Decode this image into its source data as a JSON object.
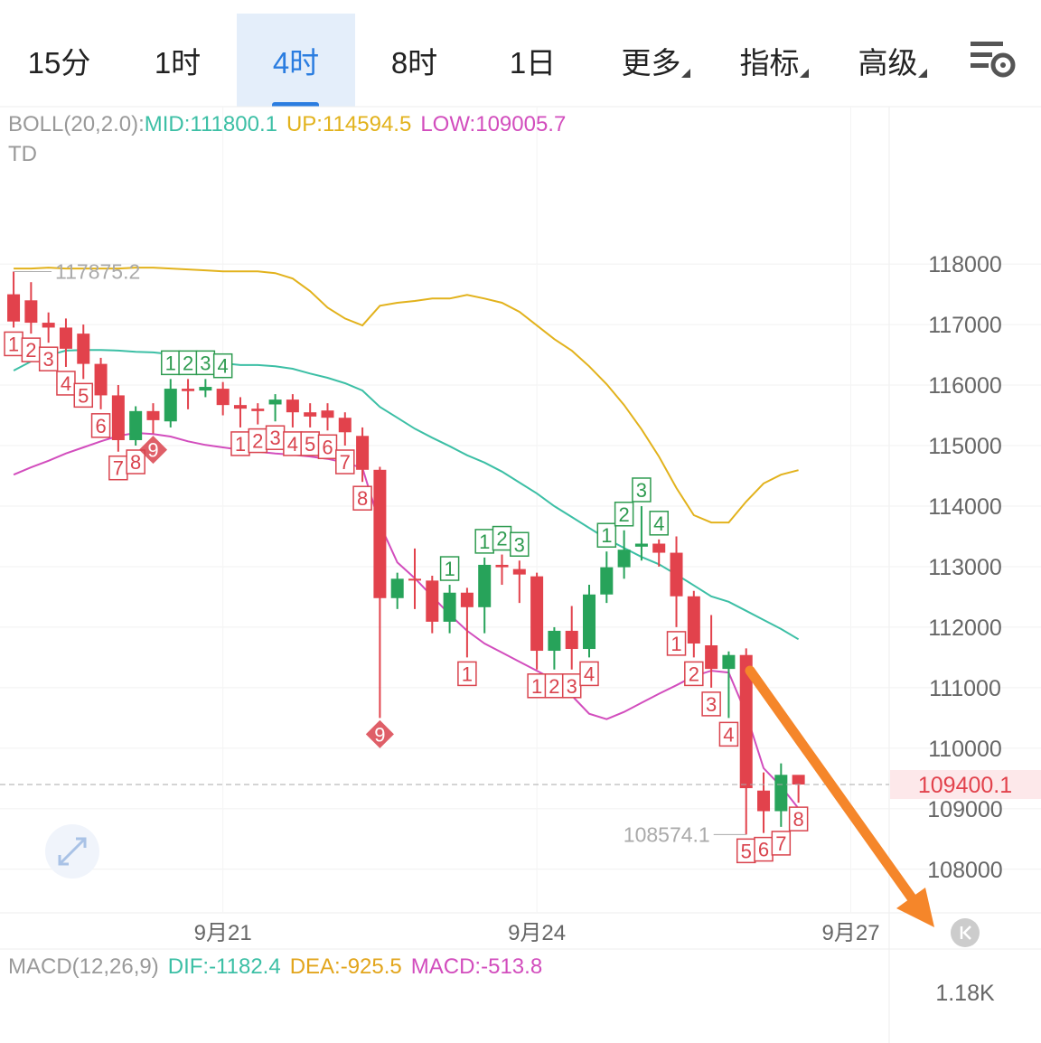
{
  "tabs": [
    {
      "label": "15分"
    },
    {
      "label": "1时"
    },
    {
      "label": "4时",
      "active": true
    },
    {
      "label": "8时"
    },
    {
      "label": "1日"
    },
    {
      "label": "更多",
      "dropdown": true
    },
    {
      "label": "指标",
      "dropdown": true
    },
    {
      "label": "高级",
      "dropdown": true
    }
  ],
  "chart_data": {
    "type": "candlestick",
    "indicator": "BOLL(20,2.0):",
    "td_title": "TD",
    "up_color": "#27a35a",
    "down_color": "#e2424c",
    "open": [
      117500,
      117400,
      117030,
      116950,
      116850,
      116350,
      115830,
      115090,
      115570,
      115400,
      115940,
      115910,
      115940,
      115670,
      115610,
      115680,
      115760,
      115550,
      115580,
      115460,
      115160,
      114600,
      112480,
      112800,
      112770,
      112090,
      112570,
      112330,
      113030,
      112960,
      112840,
      111610,
      111940,
      111640,
      112540,
      112990,
      113330,
      113380,
      113230,
      112510,
      111700,
      111310,
      111540,
      109300,
      108960,
      109560
    ],
    "high": [
      117875.2,
      117700,
      117200,
      117100,
      117000,
      116450,
      116000,
      115650,
      115700,
      116100,
      116100,
      116100,
      116050,
      115800,
      115700,
      115850,
      115850,
      115700,
      115700,
      115550,
      115300,
      114650,
      112900,
      113300,
      112850,
      112700,
      112650,
      113150,
      113200,
      113100,
      112900,
      112000,
      112350,
      112700,
      113250,
      113600,
      114000,
      113450,
      113500,
      112600,
      112200,
      111600,
      111650,
      109600,
      109750,
      109550
    ],
    "low": [
      116950,
      116850,
      116700,
      116300,
      116100,
      115600,
      114900,
      115000,
      115200,
      115300,
      115600,
      115800,
      115500,
      115300,
      115350,
      115400,
      115300,
      115300,
      115250,
      115000,
      114400,
      110500,
      112300,
      112300,
      111900,
      111900,
      111500,
      111900,
      112700,
      112400,
      111300,
      111300,
      111300,
      111500,
      112400,
      112800,
      113100,
      113000,
      112000,
      111500,
      111000,
      110500,
      108574.1,
      108600,
      108700,
      109100
    ],
    "close": [
      117050,
      117030,
      116950,
      116600,
      116350,
      115830,
      115090,
      115570,
      115420,
      115940,
      115900,
      115970,
      115670,
      115610,
      115570,
      115760,
      115550,
      115480,
      115460,
      115220,
      114600,
      112480,
      112800,
      112770,
      112090,
      112570,
      112330,
      113030,
      112990,
      112870,
      111610,
      111940,
      111640,
      112540,
      112990,
      113280,
      113380,
      113230,
      112510,
      111730,
      111310,
      111540,
      109340,
      108960,
      109560,
      109400.1
    ],
    "td": [
      1,
      2,
      3,
      4,
      5,
      6,
      7,
      8,
      9,
      1,
      2,
      3,
      4,
      1,
      2,
      3,
      4,
      5,
      6,
      7,
      8,
      9,
      null,
      null,
      null,
      1,
      1,
      1,
      2,
      3,
      1,
      2,
      3,
      4,
      1,
      2,
      3,
      4,
      1,
      2,
      3,
      4,
      5,
      6,
      7,
      8
    ],
    "td_color": [
      "#d9434d",
      "#d9434d",
      "#d9434d",
      "#d9434d",
      "#d9434d",
      "#d9434d",
      "#d9434d",
      "#d9434d",
      "#d9434d",
      "#2e9b50",
      "#2e9b50",
      "#2e9b50",
      "#2e9b50",
      "#d9434d",
      "#d9434d",
      "#d9434d",
      "#d9434d",
      "#d9434d",
      "#d9434d",
      "#d9434d",
      "#d9434d",
      "#d9434d",
      null,
      null,
      null,
      "#2e9b50",
      "#d9434d",
      "#2e9b50",
      "#2e9b50",
      "#2e9b50",
      "#d9434d",
      "#d9434d",
      "#d9434d",
      "#d9434d",
      "#2e9b50",
      "#2e9b50",
      "#2e9b50",
      "#2e9b50",
      "#d9434d",
      "#d9434d",
      "#d9434d",
      "#d9434d",
      "#d9434d",
      "#d9434d",
      "#d9434d",
      "#d9434d"
    ],
    "series": [
      {
        "name": "MID:",
        "color": "#3cbfa5",
        "values": [
          116240,
          116390,
          116490,
          116570,
          116580,
          116580,
          116570,
          116550,
          116540,
          116510,
          116460,
          116420,
          116360,
          116330,
          116330,
          116310,
          116270,
          116190,
          116120,
          116030,
          115910,
          115640,
          115460,
          115280,
          115130,
          114990,
          114840,
          114720,
          114570,
          114390,
          114210,
          114000,
          113820,
          113640,
          113460,
          113310,
          113160,
          113040,
          112870,
          112690,
          112510,
          112420,
          112270,
          112120,
          111970,
          111800.1
        ]
      },
      {
        "name": "UP:",
        "color": "#e2b21c",
        "values": [
          117925,
          117925,
          117940,
          117925,
          117925,
          117925,
          117925,
          117940,
          117940,
          117925,
          117910,
          117895,
          117880,
          117880,
          117880,
          117850,
          117760,
          117550,
          117280,
          117100,
          116985,
          117310,
          117360,
          117390,
          117430,
          117430,
          117490,
          117430,
          117360,
          117210,
          116985,
          116760,
          116570,
          116310,
          116015,
          115670,
          115270,
          114820,
          114300,
          113850,
          113730,
          113730,
          114075,
          114375,
          114520,
          114594.5
        ]
      },
      {
        "name": "LOW:",
        "color": "#d24dbd",
        "values": [
          114520,
          114640,
          114750,
          114870,
          114970,
          115070,
          115160,
          115210,
          115190,
          115150,
          115070,
          115010,
          114970,
          114930,
          114900,
          114870,
          114850,
          114820,
          114780,
          114720,
          114630,
          113700,
          113070,
          112810,
          112510,
          112210,
          111940,
          111730,
          111580,
          111430,
          111280,
          111130,
          110870,
          110570,
          110480,
          110600,
          110750,
          110900,
          111040,
          111190,
          111280,
          111250,
          110570,
          109670,
          109370,
          109005.7
        ]
      }
    ],
    "xlim": [
      -0.78,
      50.2
    ],
    "xticks": [
      {
        "value": 12,
        "label": "9月21"
      },
      {
        "value": 30,
        "label": "9月24"
      },
      {
        "value": 48,
        "label": "9月27"
      }
    ],
    "ylim": [
      107280,
      120600
    ],
    "yticks": [
      108000,
      109000,
      110000,
      111000,
      112000,
      113000,
      114000,
      115000,
      116000,
      117000,
      118000
    ],
    "grid": true,
    "macd": {
      "title": "MACD(12,26,9)",
      "items": [
        {
          "name": "DIF:",
          "value": -1182.4,
          "color": "#3cbfa5"
        },
        {
          "name": "DEA:",
          "value": -925.5,
          "color": "#e2a51c"
        },
        {
          "name": "MACD:",
          "value": -513.8,
          "color": "#d24dbd"
        }
      ],
      "yticks": [
        {
          "value": 1180,
          "label": "1.18K"
        }
      ]
    }
  }
}
